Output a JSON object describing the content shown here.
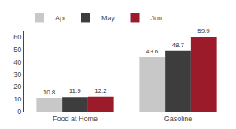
{
  "chart_data": {
    "type": "bar",
    "categories": [
      "Food at Home",
      "Gasoline"
    ],
    "series": [
      {
        "name": "Apr",
        "color": "#c8c8c8",
        "values": [
          10.8,
          43.6
        ]
      },
      {
        "name": "May",
        "color": "#3d3d3d",
        "values": [
          11.9,
          48.7
        ]
      },
      {
        "name": "Jun",
        "color": "#9b1b2a",
        "values": [
          12.2,
          59.9
        ]
      }
    ],
    "ylim": [
      0,
      65
    ],
    "yticks": [
      0,
      10,
      20,
      30,
      40,
      50,
      60
    ],
    "grid": false,
    "legend": "upper left",
    "data_labels": true
  }
}
